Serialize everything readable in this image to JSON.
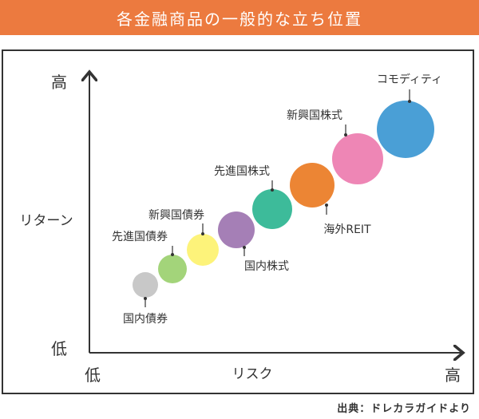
{
  "title": "各金融商品の一般的な立ち位置",
  "axes": {
    "y_high": "高",
    "y_label": "リターン",
    "y_low": "低",
    "x_low": "低",
    "x_label": "リスク",
    "x_high": "高"
  },
  "products": [
    {
      "name": "国内債券",
      "color": "#c8c8c8"
    },
    {
      "name": "先進国債券",
      "color": "#a3d47a"
    },
    {
      "name": "新興国債券",
      "color": "#fdf37a"
    },
    {
      "name": "国内株式",
      "color": "#a57fb6"
    },
    {
      "name": "先進国株式",
      "color": "#3dbb9a"
    },
    {
      "name": "海外REIT",
      "color": "#ec8534"
    },
    {
      "name": "新興国株式",
      "color": "#ee86b5"
    },
    {
      "name": "コモディティ",
      "color": "#4a9fd6"
    }
  ],
  "source": "出典：ドレカラガイドより"
}
